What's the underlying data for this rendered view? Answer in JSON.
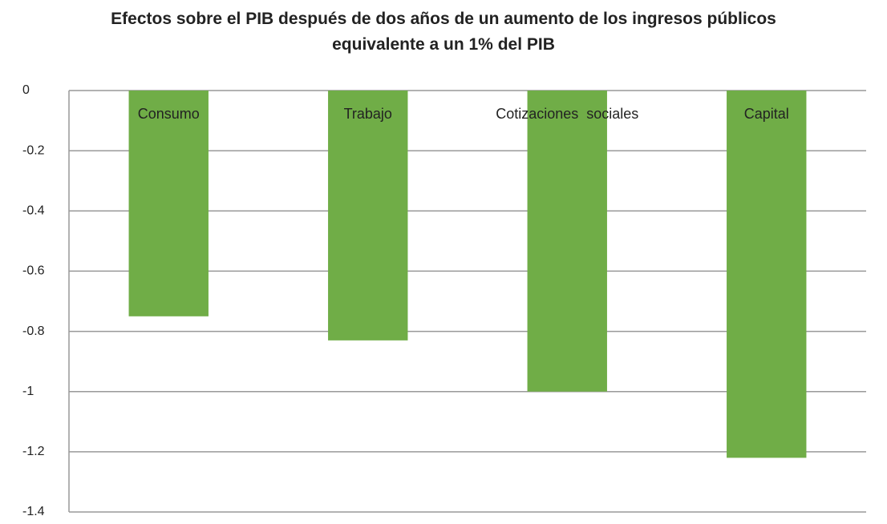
{
  "chart_data": {
    "type": "bar",
    "title": "Efectos sobre el PIB después de dos años de un aumento de los ingresos públicos equivalente a un 1% del PIB",
    "categories": [
      "Consumo",
      "Trabajo",
      "Cotizaciones  sociales",
      "Capital"
    ],
    "values": [
      -0.75,
      -0.83,
      -1.0,
      -1.22
    ],
    "color": "#70ad47",
    "ylim": [
      -1.4,
      0
    ],
    "yticks": [
      0,
      -0.2,
      -0.4,
      -0.6,
      -0.8,
      -1,
      -1.2,
      -1.4
    ],
    "grid": true
  }
}
